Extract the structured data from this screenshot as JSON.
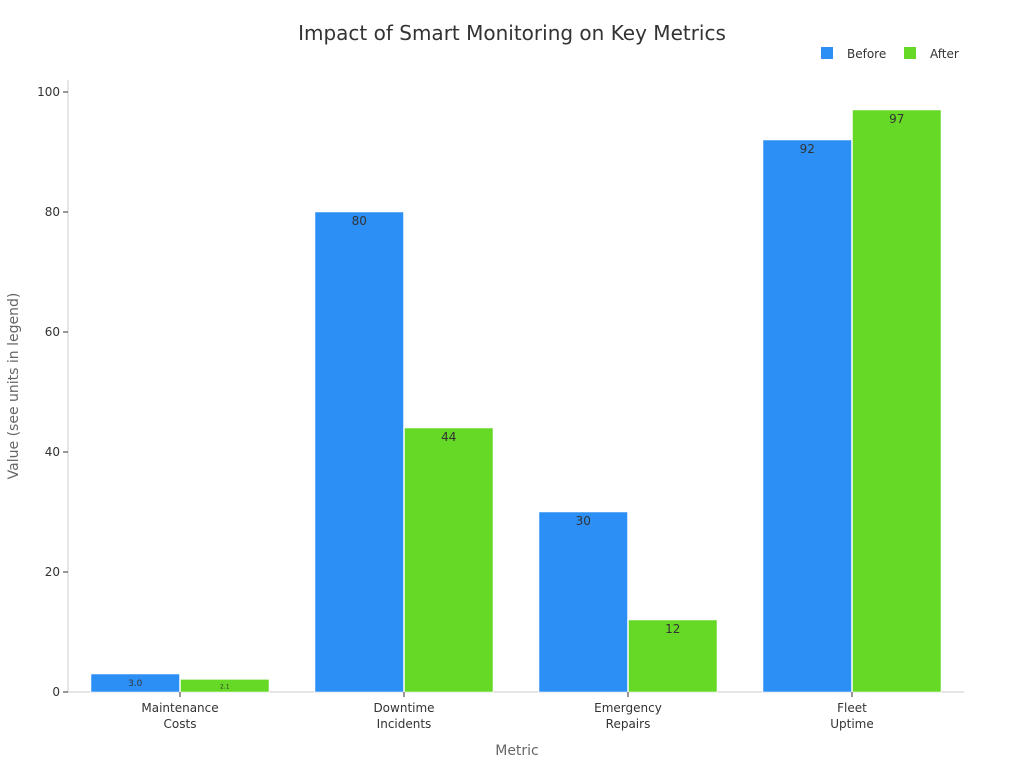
{
  "chart_data": {
    "type": "bar",
    "title": "Impact of Smart Monitoring on Key Metrics",
    "xlabel": "Metric",
    "ylabel": "Value (see units in legend)",
    "categories": [
      [
        "Maintenance",
        "Costs"
      ],
      [
        "Downtime",
        "Incidents"
      ],
      [
        "Emergency",
        "Repairs"
      ],
      [
        "Fleet",
        "Uptime"
      ]
    ],
    "series": [
      {
        "name": "Before",
        "color": "#2b8ff5",
        "values": [
          3.0,
          80,
          30,
          92
        ],
        "labels": [
          "3.0",
          "80",
          "30",
          "92"
        ]
      },
      {
        "name": "After",
        "color": "#66d926",
        "values": [
          2.1,
          44,
          12,
          97
        ],
        "labels": [
          "2.1",
          "44",
          "12",
          "97"
        ]
      }
    ],
    "ylim": [
      0,
      102
    ],
    "yticks": [
      0,
      20,
      40,
      60,
      80,
      100
    ],
    "grid": false,
    "legend_position": "top-right"
  }
}
